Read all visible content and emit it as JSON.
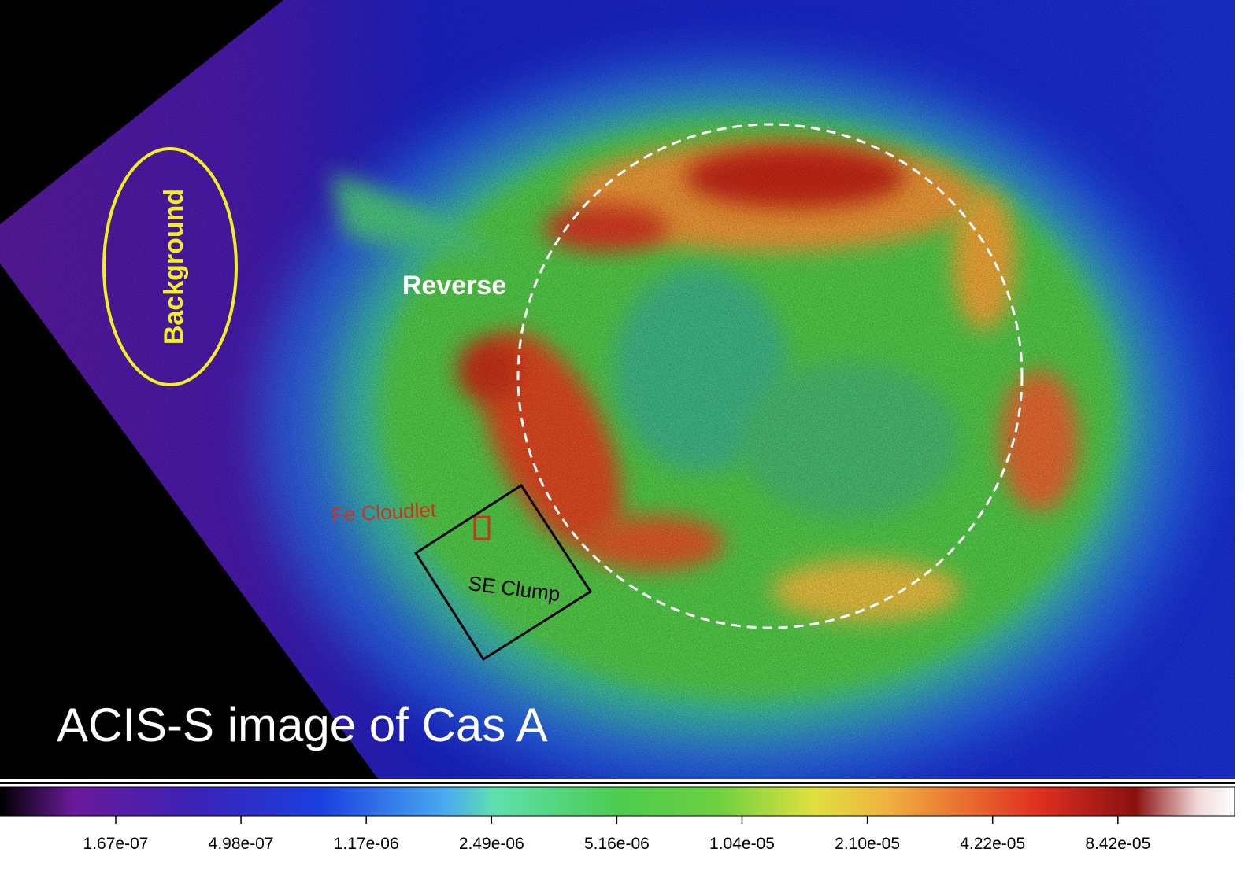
{
  "image": {
    "title": "ACIS-S image of Cas A",
    "regions": {
      "background": "Background",
      "reverse": "Reverse",
      "fe_cloudlet": "Fe Cloudlet",
      "se_clump": "SE Clump"
    }
  },
  "colorbar": {
    "tick_labels": [
      "1.67e-07",
      "4.98e-07",
      "1.17e-06",
      "2.49e-06",
      "5.16e-06",
      "1.04e-05",
      "2.10e-05",
      "4.22e-05",
      "8.42e-05"
    ]
  }
}
